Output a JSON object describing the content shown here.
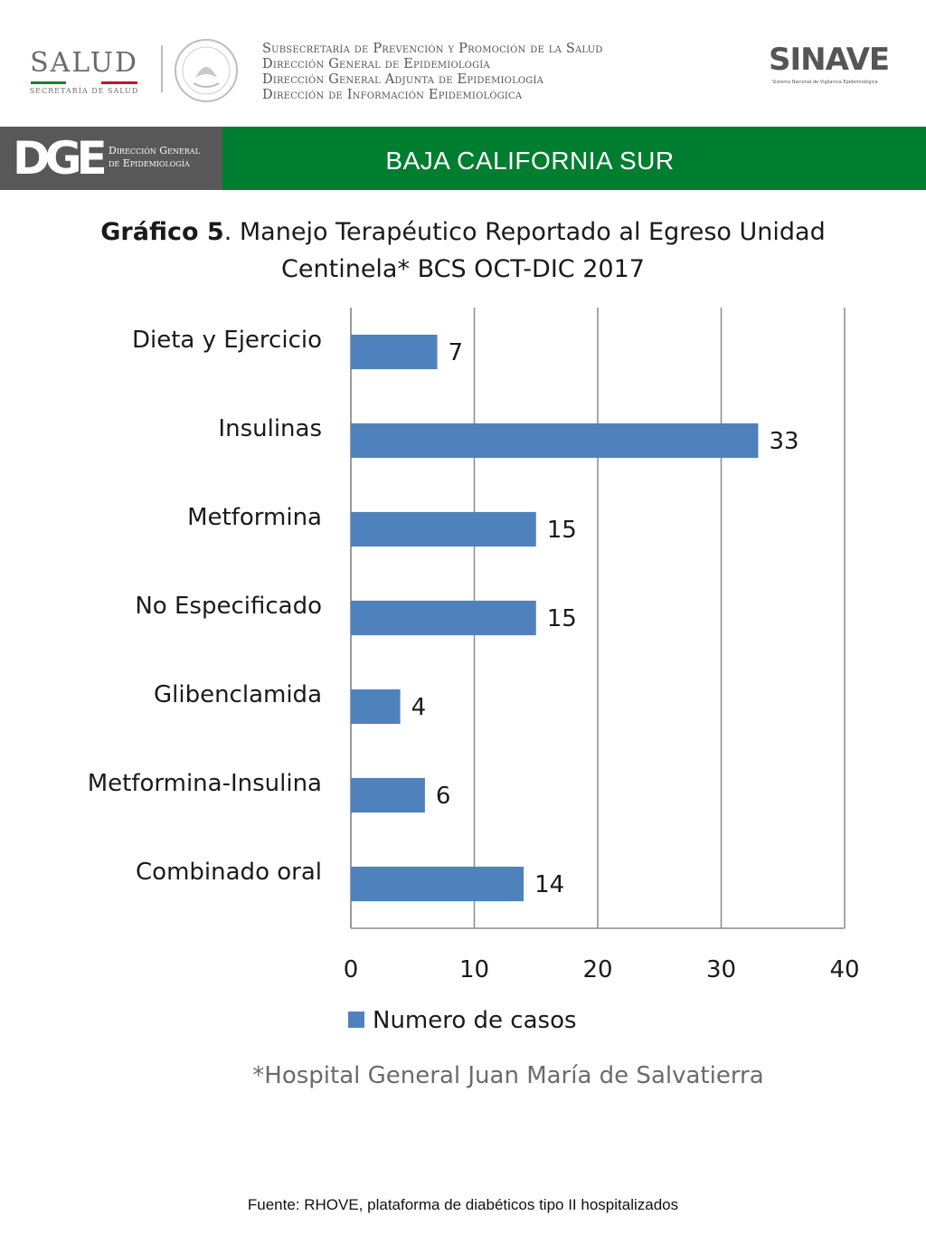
{
  "header": {
    "salud_word": "SALUD",
    "salud_sub": "SECRETARÍA DE SALUD",
    "lines": [
      "Subsecretaría de Prevención y Promoción de la Salud",
      "Dirección General de Epidemiología",
      "Dirección General Adjunta de Epidemiología",
      "Dirección de Información Epidemiológica"
    ],
    "sinave_word": "SINAVE",
    "sinave_sub": "Sistema Nacional de Vigilancia Epidemiológica"
  },
  "banner": {
    "dge_mark": "DGE",
    "dge_text_1": "Dirección General",
    "dge_text_2": "de Epidemiología",
    "state": "BAJA CALIFORNIA SUR"
  },
  "colors": {
    "bar": "#4f81bd",
    "banner_green": "#007e30",
    "banner_gray": "#585858",
    "grid": "#8c8c8c"
  },
  "chart_data": {
    "type": "bar",
    "orientation": "horizontal",
    "title_bold": "Gráfico 5",
    "title_rest": ". Manejo Terapéutico Reportado al Egreso Unidad Centinela* BCS OCT-DIC 2017",
    "categories": [
      "Dieta y Ejercicio",
      "Insulinas",
      "Metformina",
      "No Especificado",
      "Glibenclamida",
      "Metformina-Insulina",
      "Combinado oral"
    ],
    "series": [
      {
        "name": "Numero de casos",
        "values": [
          7,
          33,
          15,
          15,
          4,
          6,
          14
        ]
      }
    ],
    "xlim": [
      0,
      40
    ],
    "xticks": [
      0,
      10,
      20,
      30,
      40
    ],
    "grid": true,
    "legend": "bottom",
    "data_labels": true
  },
  "footnote": "*Hospital General Juan María de Salvatierra",
  "source": "Fuente: RHOVE, plataforma de diabéticos tipo II hospitalizados"
}
